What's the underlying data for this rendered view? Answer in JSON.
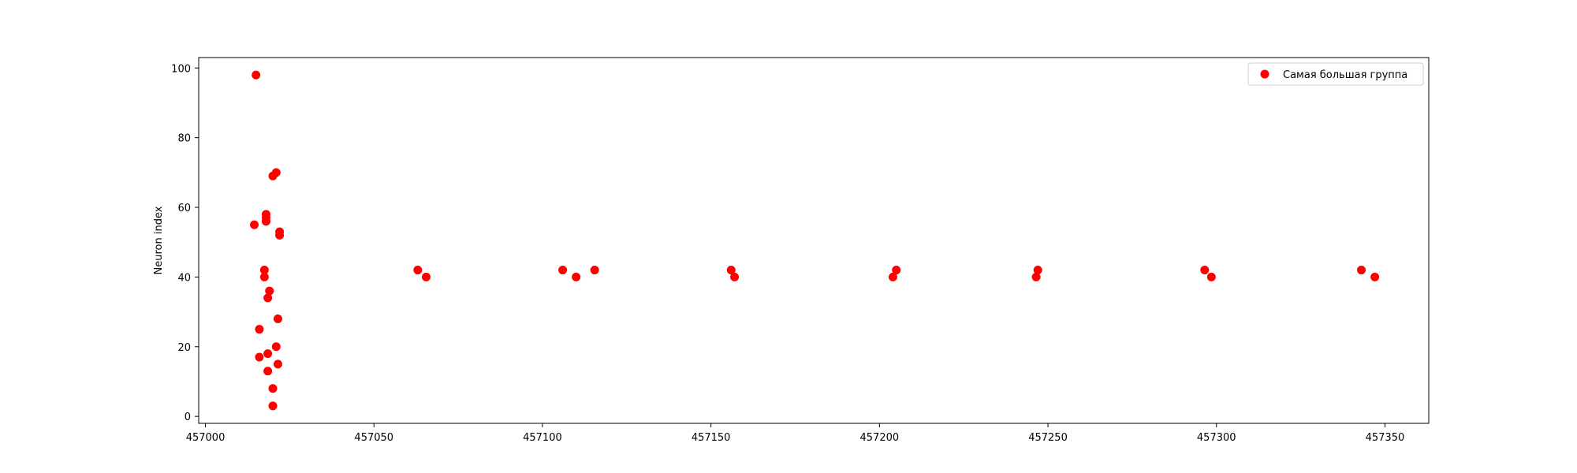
{
  "chart_data": {
    "type": "scatter",
    "title": "",
    "xlabel": "",
    "ylabel": "Neuron index",
    "xlim": [
      456998,
      457363
    ],
    "ylim": [
      -2,
      103
    ],
    "xticks": [
      457000,
      457050,
      457100,
      457150,
      457200,
      457250,
      457300,
      457350
    ],
    "yticks": [
      0,
      20,
      40,
      60,
      80,
      100
    ],
    "xtick_labels": [
      "457000",
      "457050",
      "457100",
      "457150",
      "457200",
      "457250",
      "457300",
      "457350"
    ],
    "ytick_labels": [
      "0",
      "20",
      "40",
      "60",
      "80",
      "100"
    ],
    "grid": false,
    "legend_position": "top-right",
    "series": [
      {
        "name": "Самая большая группа",
        "color": "#ff0000",
        "marker": "circle",
        "points": [
          [
            457015.0,
            98
          ],
          [
            457014.5,
            55
          ],
          [
            457016.0,
            25
          ],
          [
            457016.0,
            17
          ],
          [
            457017.5,
            42
          ],
          [
            457017.5,
            40
          ],
          [
            457018.0,
            58
          ],
          [
            457018.0,
            57
          ],
          [
            457018.0,
            56
          ],
          [
            457018.5,
            13
          ],
          [
            457018.5,
            18
          ],
          [
            457019.0,
            36
          ],
          [
            457018.5,
            34
          ],
          [
            457020.0,
            69
          ],
          [
            457020.0,
            8
          ],
          [
            457020.0,
            3
          ],
          [
            457021.0,
            70
          ],
          [
            457021.0,
            20
          ],
          [
            457021.5,
            15
          ],
          [
            457021.5,
            28
          ],
          [
            457022.0,
            53
          ],
          [
            457022.0,
            52
          ],
          [
            457063.0,
            42
          ],
          [
            457065.5,
            40
          ],
          [
            457106.0,
            42
          ],
          [
            457110.0,
            40
          ],
          [
            457115.5,
            42
          ],
          [
            457156.0,
            42
          ],
          [
            457157.0,
            40
          ],
          [
            457204.0,
            40
          ],
          [
            457205.0,
            42
          ],
          [
            457246.5,
            40
          ],
          [
            457247.0,
            42
          ],
          [
            457296.5,
            42
          ],
          [
            457298.5,
            40
          ],
          [
            457343.0,
            42
          ],
          [
            457347.0,
            40
          ]
        ]
      }
    ]
  }
}
